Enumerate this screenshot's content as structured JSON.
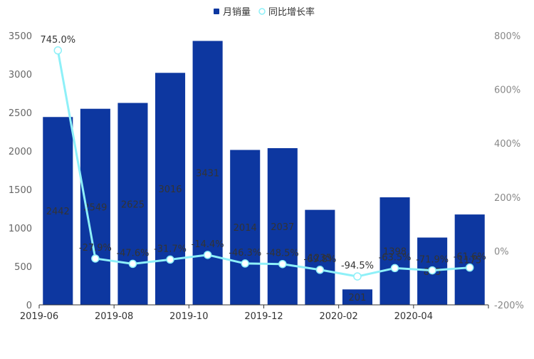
{
  "chart_data": {
    "type": "bar+line",
    "legend": {
      "position": "top-center",
      "items": [
        {
          "name": "月销量",
          "marker": "square",
          "color": "#0d37a0"
        },
        {
          "name": "同比增长率",
          "marker": "circle",
          "color": "#8ef0f8"
        }
      ]
    },
    "categories": [
      "2019-06",
      "2019-07",
      "2019-08",
      "2019-09",
      "2019-10",
      "2019-11",
      "2019-12",
      "2020-01",
      "2020-02",
      "2020-03",
      "2020-04",
      "2020-05"
    ],
    "x_tick_labels": [
      "2019-06",
      "2019-08",
      "2019-10",
      "2019-12",
      "2020-02",
      "2020-04"
    ],
    "series": [
      {
        "name": "月销量",
        "type": "bar",
        "axis": "left",
        "color": "#0d37a0",
        "values": [
          2442,
          2549,
          2625,
          3016,
          3431,
          2014,
          2037,
          1235,
          201,
          1398,
          875,
          1175
        ],
        "labels": [
          "2442",
          "2549",
          "2625",
          "3016",
          "3431",
          "2014",
          "2037",
          "1235",
          "201",
          "1398",
          "875",
          "1175"
        ]
      },
      {
        "name": "同比增长率",
        "type": "line",
        "axis": "right",
        "color": "#8ef0f8",
        "values": [
          745.0,
          -27.9,
          -47.6,
          -31.7,
          -14.4,
          -46.3,
          -48.5,
          -69.8,
          -94.5,
          -63.5,
          -71.9,
          -61.6
        ],
        "labels": [
          "745.0%",
          "-27.9%",
          "-47.6%",
          "-31.7%",
          "-14.4%",
          "-46.3%",
          "-48.5%",
          "-69.8%",
          "-94.5%",
          "-63.5%",
          "-71.9%",
          "-61.6%"
        ]
      }
    ],
    "y_left": {
      "min": 0,
      "max": 3500,
      "ticks": [
        0,
        500,
        1000,
        1500,
        2000,
        2500,
        3000,
        3500
      ],
      "tick_labels": [
        "0",
        "500",
        "1000",
        "1500",
        "2000",
        "2500",
        "3000",
        "3500"
      ]
    },
    "y_right": {
      "min": -200,
      "max": 800,
      "ticks": [
        -200,
        0,
        200,
        400,
        600,
        800
      ],
      "tick_labels": [
        "-200%",
        "0%",
        "200%",
        "400%",
        "600%",
        "800%"
      ]
    },
    "grid": false
  }
}
